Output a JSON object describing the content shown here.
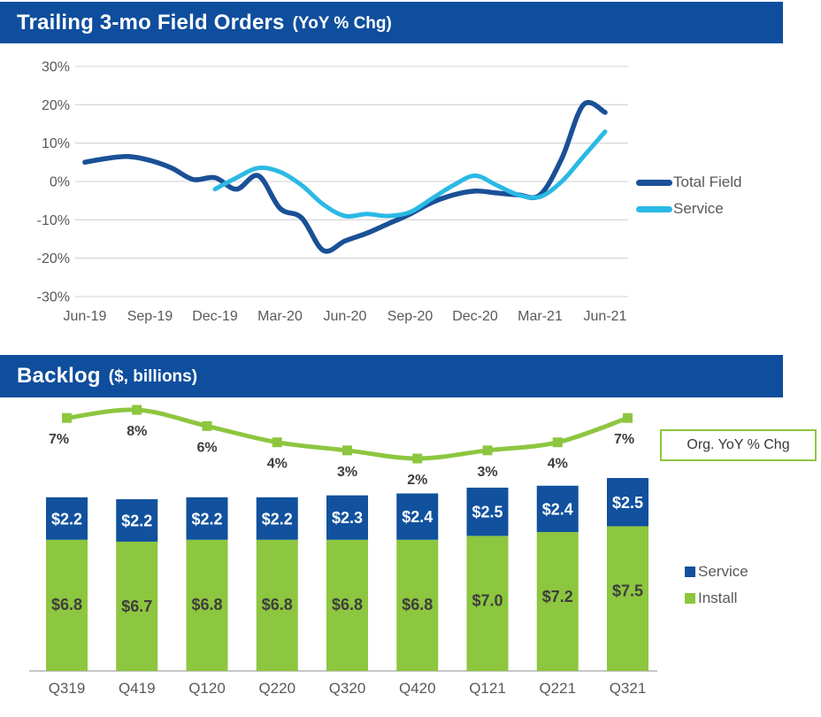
{
  "colors": {
    "band_blue": "#0F4E9D",
    "band_text": "#FFFFFF",
    "navy_line": "#1A5096",
    "cyan_line": "#2BB9E5",
    "bar_blue": "#11519E",
    "green": "#8DC63F",
    "gridline": "#D9D9D9",
    "axis_text": "#595959",
    "legend_text": "#595959",
    "dark_label": "#3E3E3E",
    "white_label": "#FFFFFF",
    "axis_line": "#C6C6C6",
    "callout_border": "#8DC63F",
    "callout_text": "#383838"
  },
  "chart_data": [
    {
      "id": "field-orders",
      "type": "line",
      "title": "Trailing 3-mo Field Orders",
      "subtitle": "(YoY % Chg)",
      "ylim": [
        -30,
        30
      ],
      "grid": true,
      "legend_position": "right",
      "y_ticks": [
        "30%",
        "20%",
        "10%",
        "0%",
        "-10%",
        "-20%",
        "-30%"
      ],
      "y_tick_values": [
        30,
        20,
        10,
        0,
        -10,
        -20,
        -30
      ],
      "x_tick_labels": [
        "Jun-19",
        "Sep-19",
        "Dec-19",
        "Mar-20",
        "Jun-20",
        "Sep-20",
        "Dec-20",
        "Mar-21",
        "Jun-21"
      ],
      "months_per_tick": 3,
      "series": [
        {
          "name": "Total Field",
          "color_key": "navy_line",
          "start_index": 0,
          "values": [
            5,
            6,
            6.5,
            5.5,
            3.5,
            0.5,
            1,
            -2,
            1.5,
            -7,
            -9.5,
            -18,
            -15.5,
            -13.5,
            -11,
            -8.5,
            -5.5,
            -3.5,
            -2.5,
            -3,
            -3.5,
            -3.5,
            6,
            20,
            18
          ]
        },
        {
          "name": "Service",
          "color_key": "cyan_line",
          "start_index": 6,
          "values": [
            -2,
            1,
            3.5,
            2.5,
            -1,
            -6,
            -9,
            -8.5,
            -9,
            -8,
            -4.5,
            -1,
            1.5,
            -1,
            -3.5,
            -4,
            0,
            6.5,
            13
          ]
        }
      ]
    },
    {
      "id": "backlog",
      "type": "stacked-bar-line",
      "title": "Backlog",
      "subtitle": "($, billions)",
      "categories": [
        "Q319",
        "Q419",
        "Q120",
        "Q220",
        "Q320",
        "Q420",
        "Q121",
        "Q221",
        "Q321"
      ],
      "bar_series": [
        {
          "name": "Install",
          "color_key": "green",
          "values": [
            6.8,
            6.7,
            6.8,
            6.8,
            6.8,
            6.8,
            7.0,
            7.2,
            7.5
          ],
          "labels": [
            "$6.8",
            "$6.7",
            "$6.8",
            "$6.8",
            "$6.8",
            "$6.8",
            "$7.0",
            "$7.2",
            "$7.5"
          ]
        },
        {
          "name": "Service",
          "color_key": "bar_blue",
          "values": [
            2.2,
            2.2,
            2.2,
            2.2,
            2.3,
            2.4,
            2.5,
            2.4,
            2.5
          ],
          "labels": [
            "$2.2",
            "$2.2",
            "$2.2",
            "$2.2",
            "$2.3",
            "$2.4",
            "$2.5",
            "$2.4",
            "$2.5"
          ]
        }
      ],
      "line_series": {
        "name": "Org. YoY % Chg",
        "color_key": "green",
        "values": [
          7,
          8,
          6,
          4,
          3,
          2,
          3,
          4,
          7
        ],
        "labels": [
          "7%",
          "8%",
          "6%",
          "4%",
          "3%",
          "2%",
          "3%",
          "4%",
          "7%"
        ]
      },
      "callout_label": "Org. YoY % Chg",
      "legend": [
        "Service",
        "Install"
      ],
      "legend_position": "right"
    }
  ]
}
